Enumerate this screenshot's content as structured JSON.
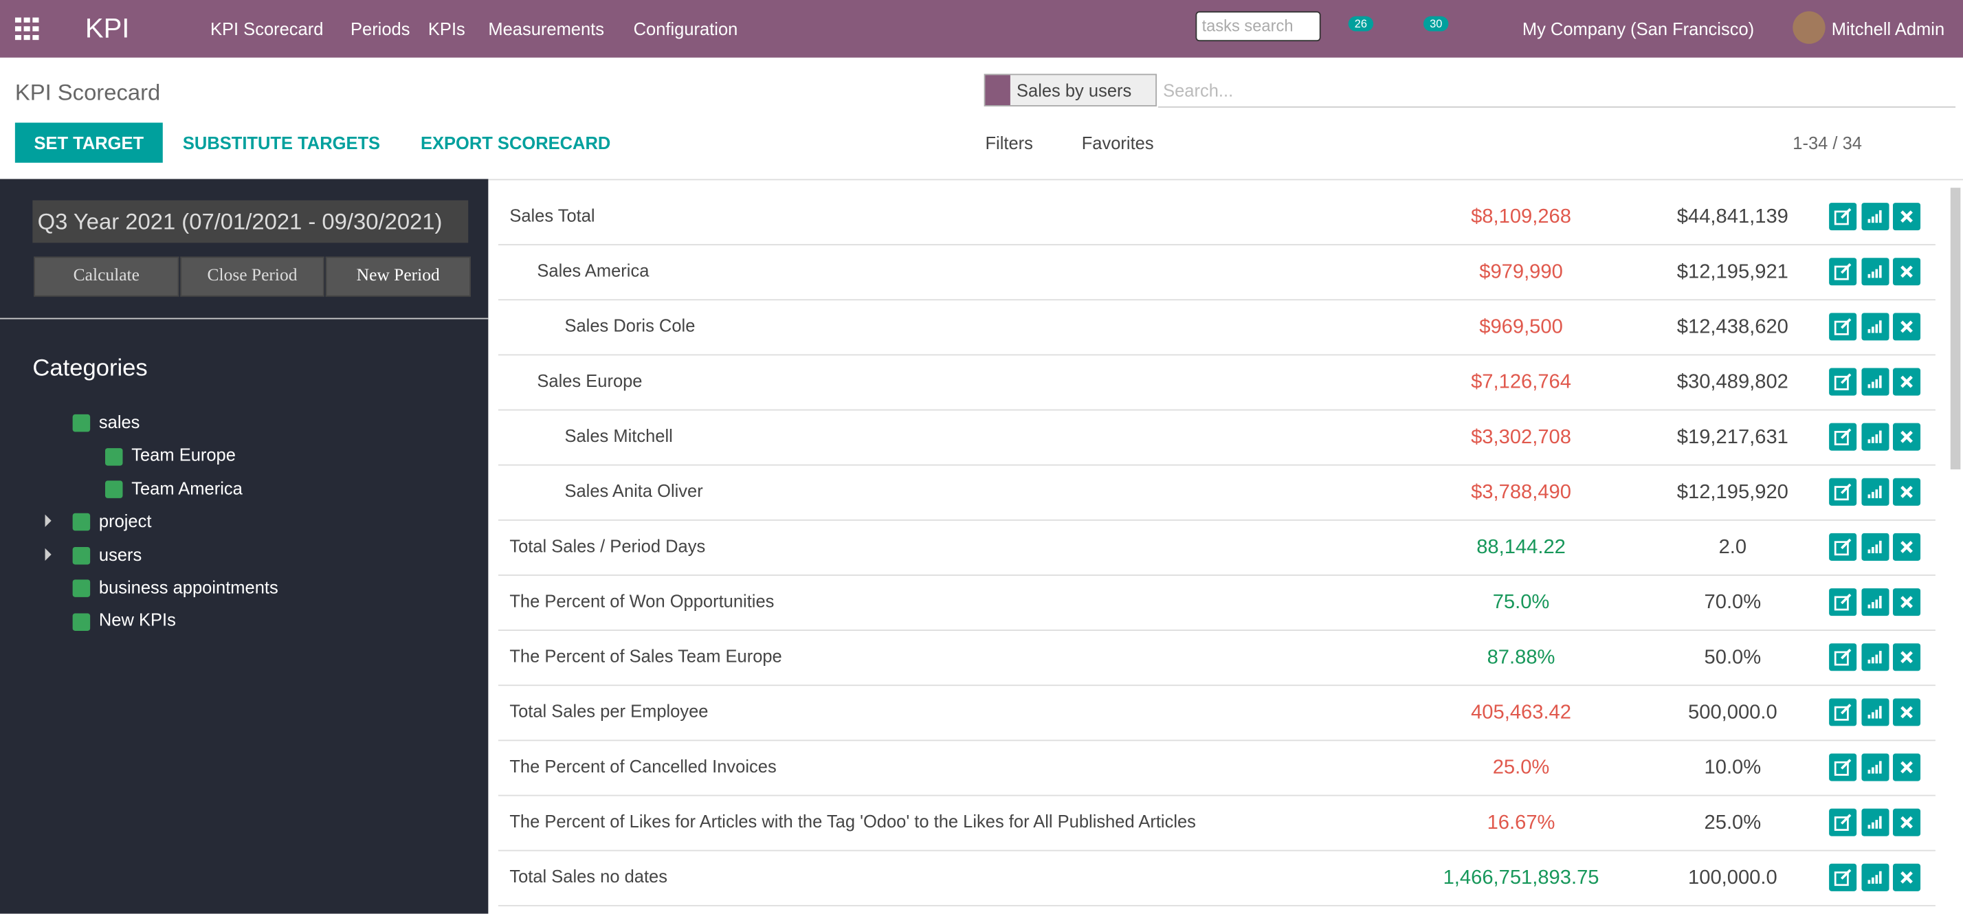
{
  "navbar": {
    "app": "KPI",
    "menu": [
      "KPI Scorecard",
      "Periods",
      "KPIs",
      "Measurements",
      "Configuration"
    ],
    "search_placeholder": "tasks search",
    "activity_count": "26",
    "message_count": "30",
    "company": "My Company (San Francisco)",
    "user": "Mitchell Admin"
  },
  "control_panel": {
    "title": "KPI Scorecard",
    "facet": "Sales by users",
    "search_placeholder": "Search...",
    "buttons": [
      "SET TARGET",
      "SUBSTITUTE TARGETS",
      "EXPORT SCORECARD"
    ],
    "filters": "Filters",
    "favorites": "Favorites",
    "pager": "1-34 / 34"
  },
  "sidebar": {
    "period": "Q3 Year 2021 (07/01/2021 - 09/30/2021)",
    "period_buttons": [
      "Calculate",
      "Close Period",
      "New Period"
    ],
    "categories_title": "Categories",
    "categories": [
      {
        "name": "sales",
        "children": [
          {
            "name": "Team Europe"
          },
          {
            "name": "Team America"
          }
        ]
      },
      {
        "name": "project",
        "collapsed": true
      },
      {
        "name": "users",
        "collapsed": true
      },
      {
        "name": "business appointments"
      },
      {
        "name": "New KPIs"
      }
    ]
  },
  "table": {
    "rows": [
      {
        "name": "Sales Total",
        "actual": "$8,109,268",
        "target": "$44,841,139",
        "actual_color": "#e0584c",
        "children": [
          {
            "name": "Sales America",
            "actual": "$979,990",
            "target": "$12,195,921",
            "actual_color": "#e0584c",
            "children": [
              {
                "name": "Sales Doris Cole",
                "actual": "$969,500",
                "target": "$12,438,620",
                "actual_color": "#e0584c"
              }
            ]
          },
          {
            "name": "Sales Europe",
            "actual": "$7,126,764",
            "target": "$30,489,802",
            "actual_color": "#e0584c",
            "children": [
              {
                "name": "Sales Mitchell",
                "actual": "$3,302,708",
                "target": "$19,217,631",
                "actual_color": "#e0584c"
              },
              {
                "name": "Sales Anita Oliver",
                "actual": "$3,788,490",
                "target": "$12,195,920",
                "actual_color": "#e0584c"
              }
            ]
          }
        ]
      },
      {
        "name": "Total Sales / Period Days",
        "actual": "88,144.22",
        "target": "2.0",
        "actual_color": "#17975a"
      },
      {
        "name": "The Percent of Won Opportunities",
        "actual": "75.0%",
        "target": "70.0%",
        "actual_color": "#17975a"
      },
      {
        "name": "The Percent of Sales Team Europe",
        "actual": "87.88%",
        "target": "50.0%",
        "actual_color": "#17975a"
      },
      {
        "name": "Total Sales per Employee",
        "actual": "405,463.42",
        "target": "500,000.0",
        "actual_color": "#e0584c"
      },
      {
        "name": "The Percent of Cancelled Invoices",
        "actual": "25.0%",
        "target": "10.0%",
        "actual_color": "#e0584c"
      },
      {
        "name": "The Percent of Likes for Articles with the Tag 'Odoo' to the Likes for All Published Articles",
        "actual": "16.67%",
        "target": "25.0%",
        "actual_color": "#e0584c"
      },
      {
        "name": "Total Sales no dates",
        "actual": "1,466,751,893.75",
        "target": "100,000.0",
        "actual_color": "#17975a"
      }
    ]
  }
}
